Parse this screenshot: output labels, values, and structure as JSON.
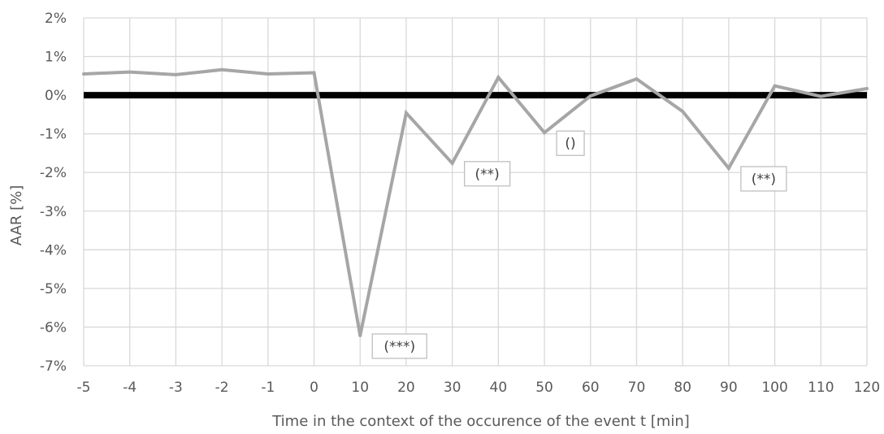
{
  "chart_data": {
    "type": "line",
    "categories": [
      "-5",
      "-4",
      "-3",
      "-2",
      "-1",
      "0",
      "10",
      "20",
      "30",
      "40",
      "50",
      "60",
      "70",
      "80",
      "90",
      "100",
      "110",
      "120"
    ],
    "series": [
      {
        "values": [
          0.55,
          0.6,
          0.53,
          0.66,
          0.55,
          0.58,
          -6.22,
          -0.46,
          -1.76,
          0.46,
          -0.97,
          -0.02,
          0.42,
          -0.42,
          -1.89,
          0.24,
          -0.03,
          0.17
        ],
        "color": "#a6a6a6"
      }
    ],
    "xlabel": "Time in the context of the occurence of the event t [min]",
    "ylabel": "AAR [%]",
    "ylim": [
      -7,
      2
    ],
    "yticks": [
      "2%",
      "1%",
      "0%",
      "-1%",
      "-2%",
      "-3%",
      "-4%",
      "-5%",
      "-6%",
      "-7%"
    ],
    "ytick_values": [
      2,
      1,
      0,
      -1,
      -2,
      -3,
      -4,
      -5,
      -6,
      -7
    ],
    "grid": true,
    "zero_line_color": "#000000",
    "gridline_color": "#d9d9d9",
    "annotations": [
      {
        "category": "10",
        "value": -6.22,
        "text": "(***)"
      },
      {
        "category": "30",
        "value": -1.76,
        "text": "(**)"
      },
      {
        "category": "50",
        "value": -0.97,
        "text": "()"
      },
      {
        "category": "90",
        "value": -1.89,
        "text": "(**)"
      }
    ]
  }
}
